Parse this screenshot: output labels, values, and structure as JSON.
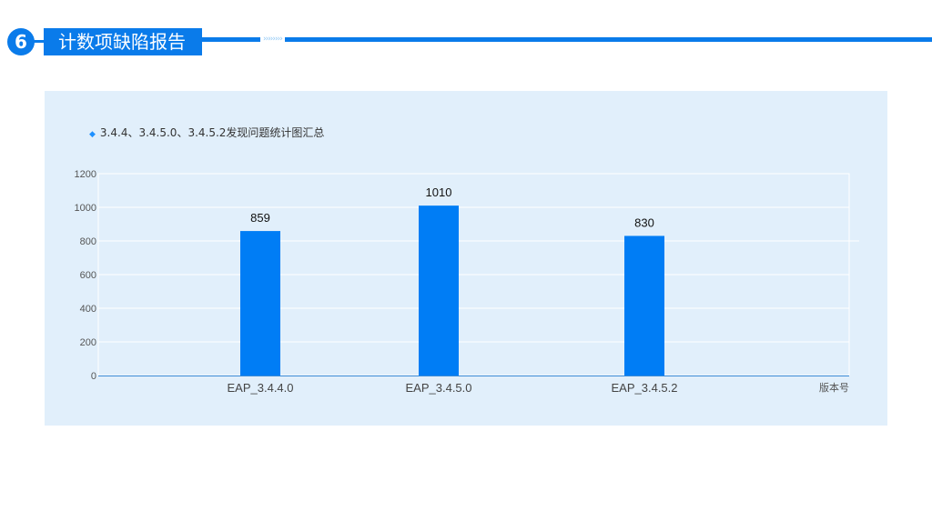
{
  "header": {
    "section_number": "6",
    "title": "计数项缺陷报告",
    "decoration": "››››››››"
  },
  "colors": {
    "accent": "#0a7bea",
    "bar": "#007df5",
    "panel_bg": "#e1effb",
    "gridline": "#ffffff"
  },
  "chart_data": {
    "type": "bar",
    "title": "3.4.4、3.4.5.0、3.4.5.2发现问题统计图汇总",
    "categories": [
      "EAP_3.4.4.0",
      "EAP_3.4.5.0",
      "EAP_3.4.5.2"
    ],
    "values": [
      859,
      1010,
      830
    ],
    "xlabel": "版本号",
    "ylabel": "",
    "ylim": [
      0,
      1200
    ],
    "yticks": [
      0,
      200,
      400,
      600,
      800,
      1000,
      1200
    ],
    "grid": true,
    "legend": "none"
  }
}
